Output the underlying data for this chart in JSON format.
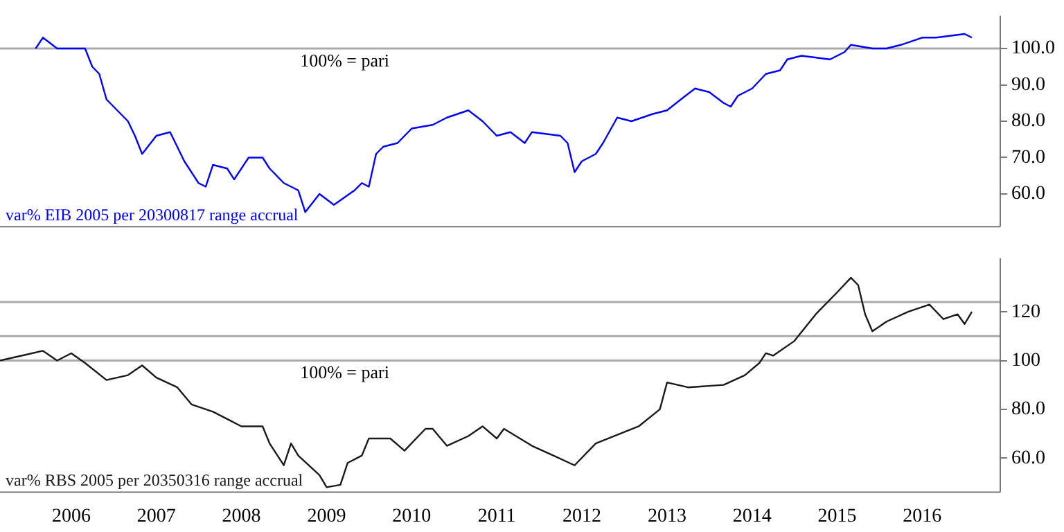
{
  "chart_data": [
    {
      "type": "line",
      "xlim": [
        "2005-03-01",
        "2016-12-01"
      ],
      "ylim": [
        51,
        109
      ],
      "yticks": [
        {
          "value": 60,
          "label": "60.0"
        },
        {
          "value": 70,
          "label": "70.0"
        },
        {
          "value": 80,
          "label": "80.0"
        },
        {
          "value": 90,
          "label": "90.0"
        },
        {
          "value": 100,
          "label": "100.0"
        }
      ],
      "tick_labels": "y",
      "grid": false,
      "legend": false,
      "marker": "none",
      "ref_lines": [
        {
          "axis": "y",
          "value": 100,
          "label": "100% = pari",
          "color": "#aaaaaa"
        }
      ],
      "series": [
        {
          "name": "var% EIB 2005 per 20300817 range accrual",
          "color": "#0000ff",
          "x": [
            "2005-08",
            "2005-09",
            "2005-11",
            "2006-03",
            "2006-04",
            "2006-05",
            "2006-06",
            "2006-09",
            "2006-10",
            "2006-11",
            "2007-01",
            "2007-03",
            "2007-05",
            "2007-07",
            "2007-08",
            "2007-09",
            "2007-11",
            "2007-12",
            "2008-02",
            "2008-04",
            "2008-05",
            "2008-07",
            "2008-09",
            "2008-10",
            "2008-12",
            "2009-02",
            "2009-05",
            "2009-06",
            "2009-07",
            "2009-08",
            "2009-09",
            "2009-11",
            "2010-01",
            "2010-04",
            "2010-06",
            "2010-09",
            "2010-11",
            "2011-01",
            "2011-03",
            "2011-05",
            "2011-06",
            "2011-10",
            "2011-11",
            "2011-12",
            "2012-01",
            "2012-03",
            "2012-04",
            "2012-06",
            "2012-08",
            "2012-11",
            "2013-01",
            "2013-03",
            "2013-05",
            "2013-07",
            "2013-09",
            "2013-10",
            "2013-11",
            "2014-01",
            "2014-03",
            "2014-05",
            "2014-06",
            "2014-08",
            "2014-12",
            "2015-02",
            "2015-03",
            "2015-06",
            "2015-08",
            "2015-10",
            "2016-01",
            "2016-03",
            "2016-07",
            "2016-08"
          ],
          "values": [
            100,
            103,
            100,
            100,
            95,
            93,
            86,
            80,
            76,
            71,
            76,
            77,
            69,
            63,
            62,
            68,
            67,
            64,
            70,
            70,
            67,
            63,
            61,
            55,
            60,
            57,
            61,
            63,
            62,
            71,
            73,
            74,
            78,
            79,
            81,
            83,
            80,
            76,
            77,
            74,
            77,
            76,
            74,
            66,
            69,
            71,
            74,
            81,
            80,
            82,
            83,
            86,
            89,
            88,
            85,
            84,
            87,
            89,
            93,
            94,
            97,
            98,
            97,
            99,
            101,
            100,
            100,
            101,
            103,
            103,
            104,
            103
          ]
        }
      ]
    },
    {
      "type": "line",
      "xlim": [
        "2005-03-01",
        "2016-12-01"
      ],
      "xticks": [
        {
          "value": "2006-01-01",
          "label": "2006"
        },
        {
          "value": "2007-01-01",
          "label": "2007"
        },
        {
          "value": "2008-01-01",
          "label": "2008"
        },
        {
          "value": "2009-01-01",
          "label": "2009"
        },
        {
          "value": "2010-01-01",
          "label": "2010"
        },
        {
          "value": "2011-01-01",
          "label": "2011"
        },
        {
          "value": "2012-01-01",
          "label": "2012"
        },
        {
          "value": "2013-01-01",
          "label": "2013"
        },
        {
          "value": "2014-01-01",
          "label": "2014"
        },
        {
          "value": "2015-01-01",
          "label": "2015"
        },
        {
          "value": "2016-01-01",
          "label": "2016"
        }
      ],
      "ylim": [
        46,
        142
      ],
      "yticks": [
        {
          "value": 60,
          "label": "60.0"
        },
        {
          "value": 80,
          "label": "80.0"
        },
        {
          "value": 100,
          "label": "100"
        },
        {
          "value": 120,
          "label": "120"
        }
      ],
      "grid": false,
      "legend": false,
      "marker": "none",
      "ref_lines": [
        {
          "axis": "y",
          "value": 124,
          "color": "#aaaaaa"
        },
        {
          "axis": "y",
          "value": 110,
          "color": "#aaaaaa"
        },
        {
          "axis": "y",
          "value": 100,
          "label": "100% = pari",
          "color": "#aaaaaa"
        }
      ],
      "series": [
        {
          "name": "var% RBS 2005 per 20350316 range accrual",
          "color": "#1a1a1a",
          "x": [
            "2005-03",
            "2005-06",
            "2005-09",
            "2005-11",
            "2006-01",
            "2006-03",
            "2006-06",
            "2006-09",
            "2006-11",
            "2007-01",
            "2007-04",
            "2007-06",
            "2007-09",
            "2007-11",
            "2008-01",
            "2008-04",
            "2008-05",
            "2008-07",
            "2008-08",
            "2008-09",
            "2008-12",
            "2009-01",
            "2009-03",
            "2009-04",
            "2009-06",
            "2009-07",
            "2009-10",
            "2009-12",
            "2010-03",
            "2010-04",
            "2010-06",
            "2010-09",
            "2010-11",
            "2011-01",
            "2011-02",
            "2011-06",
            "2011-09",
            "2011-12",
            "2012-03",
            "2012-09",
            "2012-12",
            "2013-01",
            "2013-04",
            "2013-09",
            "2013-12",
            "2014-02",
            "2014-03",
            "2014-04",
            "2014-07",
            "2014-10",
            "2015-01",
            "2015-03",
            "2015-04",
            "2015-05",
            "2015-06",
            "2015-08",
            "2015-11",
            "2016-02",
            "2016-04",
            "2016-06",
            "2016-07",
            "2016-08"
          ],
          "values": [
            100,
            102,
            104,
            100,
            103,
            99,
            92,
            94,
            98,
            93,
            89,
            82,
            79,
            76,
            73,
            73,
            66,
            57,
            66,
            61,
            53,
            48,
            49,
            58,
            61,
            68,
            68,
            63,
            72,
            72,
            65,
            69,
            73,
            68,
            72,
            65,
            61,
            57,
            66,
            73,
            80,
            91,
            89,
            90,
            94,
            99,
            103,
            102,
            108,
            119,
            128,
            134,
            131,
            119,
            112,
            116,
            120,
            123,
            117,
            119,
            115,
            120
          ]
        }
      ]
    }
  ]
}
